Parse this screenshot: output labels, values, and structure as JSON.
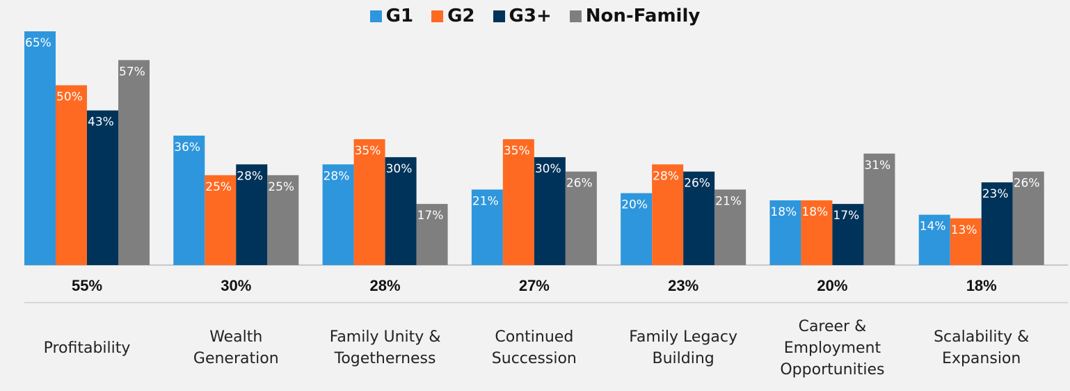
{
  "chart_data": {
    "type": "bar",
    "categories": [
      "Profitability",
      "Wealth Generation",
      "Family Unity & Togetherness",
      "Continued Succession",
      "Family Legacy Building",
      "Career & Employment Opportunities",
      "Scalability & Expansion"
    ],
    "series": [
      {
        "name": "G1",
        "color": "#2e96dc",
        "values": [
          65,
          36,
          28,
          21,
          20,
          18,
          14
        ],
        "value_labels": [
          "65%",
          "36%",
          "28%",
          "21%",
          "20%",
          "18%",
          "14%"
        ]
      },
      {
        "name": "G2",
        "color": "#ff6a22",
        "values": [
          50,
          25,
          35,
          35,
          28,
          18,
          13
        ],
        "value_labels": [
          "50%",
          "25%",
          "35%",
          "35%",
          "28%",
          "18%",
          "13%"
        ]
      },
      {
        "name": "G3+",
        "color": "#003359",
        "values": [
          43,
          28,
          30,
          30,
          26,
          17,
          23
        ],
        "value_labels": [
          "43%",
          "28%",
          "30%",
          "30%",
          "26%",
          "17%",
          "23%"
        ]
      },
      {
        "name": "Non-Family",
        "color": "#7f7f7f",
        "values": [
          57,
          25,
          17,
          26,
          21,
          31,
          26
        ],
        "value_labels": [
          "57%",
          "25%",
          "17%",
          "26%",
          "21%",
          "31%",
          "26%"
        ]
      }
    ],
    "totals": {
      "values": [
        55,
        30,
        28,
        27,
        23,
        20,
        18
      ],
      "value_labels": [
        "55%",
        "30%",
        "28%",
        "27%",
        "23%",
        "20%",
        "18%"
      ]
    },
    "legend": "top"
  }
}
